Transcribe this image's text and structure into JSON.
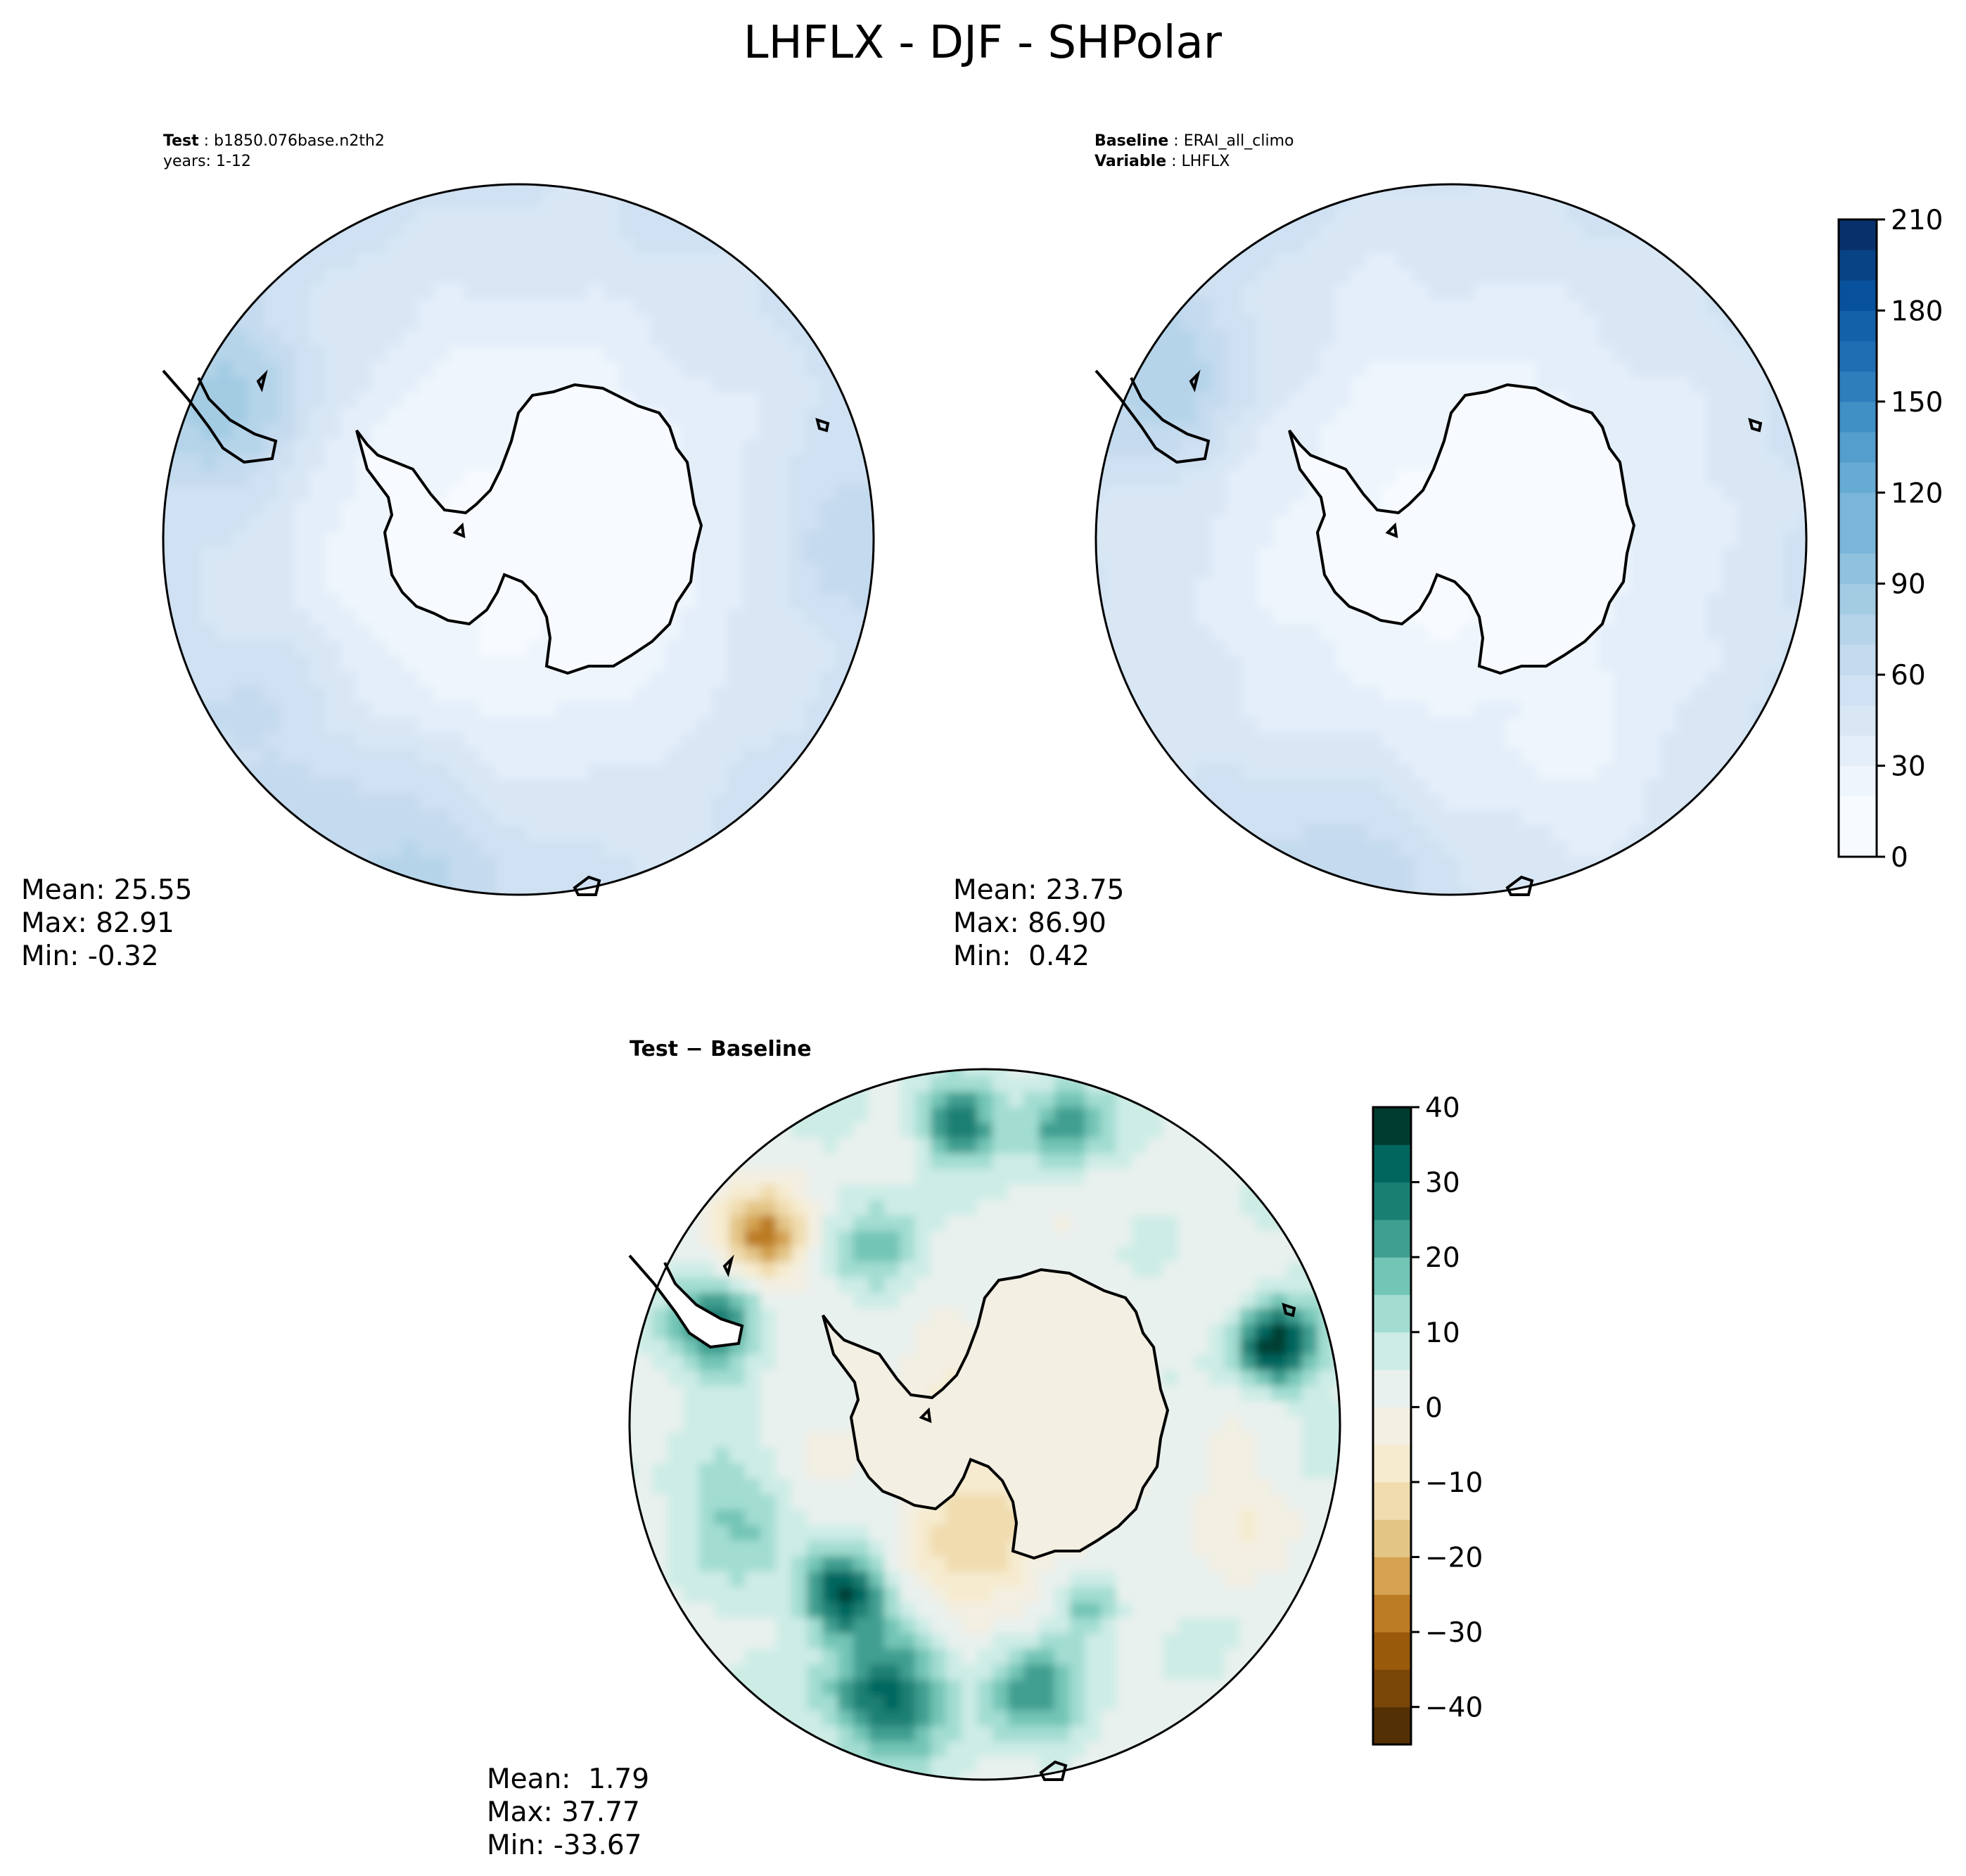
{
  "title": "LHFLX - DJF - SHPolar",
  "colors": {
    "sequential": [
      "#f7fbff",
      "#eef5fc",
      "#e3eef9",
      "#d9e7f5",
      "#cfe1f2",
      "#c4daee",
      "#b5d4e9",
      "#a3cce3",
      "#8fc2de",
      "#7ab6d9",
      "#66abd4",
      "#539ecd",
      "#4090c5",
      "#2e7ebc",
      "#1f6eb3",
      "#1361a9",
      "#08519c",
      "#084386",
      "#08306b"
    ],
    "diverging": [
      "#543005",
      "#7a4608",
      "#995a0c",
      "#bb7a24",
      "#d4a251",
      "#e3c586",
      "#f0dcae",
      "#f6ebcf",
      "#f3efe2",
      "#e9f1ee",
      "#cdece6",
      "#a3ddd2",
      "#73c5b6",
      "#3f9f90",
      "#1a7f73",
      "#01665e",
      "#003c30"
    ]
  },
  "chart_data": [
    {
      "type": "heatmap",
      "panel": "test",
      "title_lines": [
        {
          "label": "Test",
          "value": "b1850.076base.n2th2"
        },
        {
          "label": "",
          "value": "years: 1-12"
        }
      ],
      "stats": {
        "mean": "Mean: 25.55",
        "max": "Max: 82.91",
        "min": "Min: -0.32"
      },
      "field": {
        "base": 36,
        "ring_gradient": [
          [
            0.0,
            5
          ],
          [
            0.45,
            15
          ],
          [
            0.7,
            30
          ],
          [
            1.0,
            42
          ]
        ],
        "blobs": [
          {
            "angle_deg": -155,
            "radius_frac": 0.9,
            "amp": 35,
            "size": 0.18
          },
          {
            "angle_deg": 110,
            "radius_frac": 0.95,
            "amp": 22,
            "size": 0.2
          },
          {
            "angle_deg": 0,
            "radius_frac": 0.9,
            "amp": 18,
            "size": 0.15
          },
          {
            "angle_deg": 145,
            "radius_frac": 0.85,
            "amp": 12,
            "size": 0.2
          }
        ]
      },
      "min_value": -0.32,
      "max_value": 82.91,
      "mean_value": 25.55
    },
    {
      "type": "heatmap",
      "panel": "baseline",
      "title_lines": [
        {
          "label": "Baseline",
          "value": "ERAI_all_climo"
        },
        {
          "label": "Variable",
          "value": "LHFLX"
        }
      ],
      "stats": {
        "mean": "Mean: 23.75",
        "max": "Max: 86.90",
        "min": "Min:  0.42"
      },
      "field": {
        "base": 34,
        "ring_gradient": [
          [
            0.0,
            3
          ],
          [
            0.45,
            18
          ],
          [
            0.7,
            28
          ],
          [
            1.0,
            40
          ]
        ],
        "blobs": [
          {
            "angle_deg": -150,
            "radius_frac": 0.9,
            "amp": 30,
            "size": 0.18
          },
          {
            "angle_deg": 110,
            "radius_frac": 0.95,
            "amp": 18,
            "size": 0.2
          },
          {
            "angle_deg": 60,
            "radius_frac": 0.8,
            "amp": -12,
            "size": 0.18
          }
        ]
      },
      "min_value": 0.42,
      "max_value": 86.9,
      "mean_value": 23.75
    },
    {
      "type": "heatmap",
      "panel": "difference",
      "title_lines": [
        {
          "label": "Test − Baseline",
          "value": ""
        }
      ],
      "stats": {
        "mean": "Mean:  1.79",
        "max": "Max: 37.77",
        "min": "Min: -33.67"
      },
      "field": {
        "base": 4,
        "blobs": [
          {
            "angle_deg": -140,
            "radius_frac": 0.82,
            "amp": -30,
            "size": 0.09
          },
          {
            "angle_deg": -160,
            "radius_frac": 0.8,
            "amp": 22,
            "size": 0.1
          },
          {
            "angle_deg": -95,
            "radius_frac": 0.85,
            "amp": 25,
            "size": 0.08
          },
          {
            "angle_deg": -75,
            "radius_frac": 0.88,
            "amp": 22,
            "size": 0.08
          },
          {
            "angle_deg": -15,
            "radius_frac": 0.85,
            "amp": 35,
            "size": 0.08
          },
          {
            "angle_deg": 130,
            "radius_frac": 0.62,
            "amp": 37,
            "size": 0.08
          },
          {
            "angle_deg": 110,
            "radius_frac": 0.82,
            "amp": 28,
            "size": 0.12
          },
          {
            "angle_deg": 80,
            "radius_frac": 0.75,
            "amp": 20,
            "size": 0.1
          },
          {
            "angle_deg": 60,
            "radius_frac": 0.6,
            "amp": 18,
            "size": 0.06
          },
          {
            "angle_deg": 90,
            "radius_frac": 0.35,
            "amp": -12,
            "size": 0.15
          },
          {
            "angle_deg": 0,
            "radius_frac": 0.0,
            "amp": -8,
            "size": 0.32
          },
          {
            "angle_deg": 20,
            "radius_frac": 0.75,
            "amp": -8,
            "size": 0.12
          },
          {
            "angle_deg": 160,
            "radius_frac": 0.75,
            "amp": 12,
            "size": 0.12
          },
          {
            "angle_deg": -120,
            "radius_frac": 0.55,
            "amp": 14,
            "size": 0.1
          }
        ]
      },
      "min_value": -33.67,
      "max_value": 37.77,
      "mean_value": 1.79
    }
  ],
  "colorbars": {
    "sequential": {
      "ticks": [
        "0",
        "30",
        "60",
        "90",
        "120",
        "150",
        "180",
        "210"
      ],
      "min": 0,
      "max": 210,
      "step": 10
    },
    "diverging": {
      "ticks": [
        "−40",
        "−30",
        "−20",
        "−10",
        "0",
        "10",
        "20",
        "30",
        "40"
      ],
      "min": -45,
      "max": 40,
      "step": 5
    }
  }
}
